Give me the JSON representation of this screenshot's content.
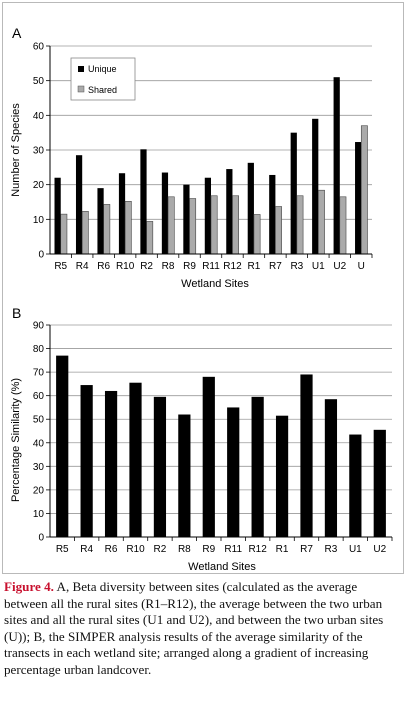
{
  "chart_data": [
    {
      "type": "bar",
      "panel_label": "A",
      "title": "",
      "xlabel": "Wetland Sites",
      "ylabel": "Number of Species",
      "ylim": [
        0,
        60
      ],
      "yticks": [
        0,
        10,
        20,
        30,
        40,
        50,
        60
      ],
      "grid": true,
      "legend": "top-left",
      "categories": [
        "R5",
        "R4",
        "R6",
        "R10",
        "R2",
        "R8",
        "R9",
        "R11",
        "R12",
        "R1",
        "R7",
        "R3",
        "U1",
        "U2",
        "U"
      ],
      "series": [
        {
          "name": "Unique",
          "color": "#000000",
          "values": [
            22,
            28.5,
            19,
            23.3,
            30.2,
            23.5,
            20,
            22,
            24.5,
            26.3,
            22.8,
            35,
            39,
            51,
            32.3
          ]
        },
        {
          "name": "Shared",
          "color": "#aaaaaa",
          "values": [
            11.5,
            12.3,
            14.3,
            15.2,
            9.4,
            16.5,
            16,
            16.8,
            16.8,
            11.4,
            13.7,
            16.8,
            18.4,
            16.5,
            37
          ]
        }
      ]
    },
    {
      "type": "bar",
      "panel_label": "B",
      "title": "",
      "xlabel": "Wetland Sites",
      "ylabel": "Percentage Similarity (%)",
      "ylim": [
        0,
        90
      ],
      "yticks": [
        0,
        10,
        20,
        30,
        40,
        50,
        60,
        70,
        80,
        90
      ],
      "grid": true,
      "categories": [
        "R5",
        "R4",
        "R6",
        "R10",
        "R2",
        "R8",
        "R9",
        "R11",
        "R12",
        "R1",
        "R7",
        "R3",
        "U1",
        "U2"
      ],
      "series": [
        {
          "color": "#000000",
          "values": [
            77,
            64.5,
            62,
            65.5,
            59.5,
            52,
            68,
            55,
            59.5,
            51.5,
            69,
            58.5,
            43.5,
            45.5
          ]
        }
      ]
    }
  ],
  "caption": {
    "label": "Figure 4.",
    "text": " A, Beta diversity between sites (calculated as the average between all the rural sites (R1–R12), the average between the two urban sites and all the rural sites (U1 and U2), and between the two urban sites (U)); B, the SIMPER analysis results of the average similarity of the transects in each wetland site; arranged along a gradient of increasing percentage urban landcover."
  }
}
